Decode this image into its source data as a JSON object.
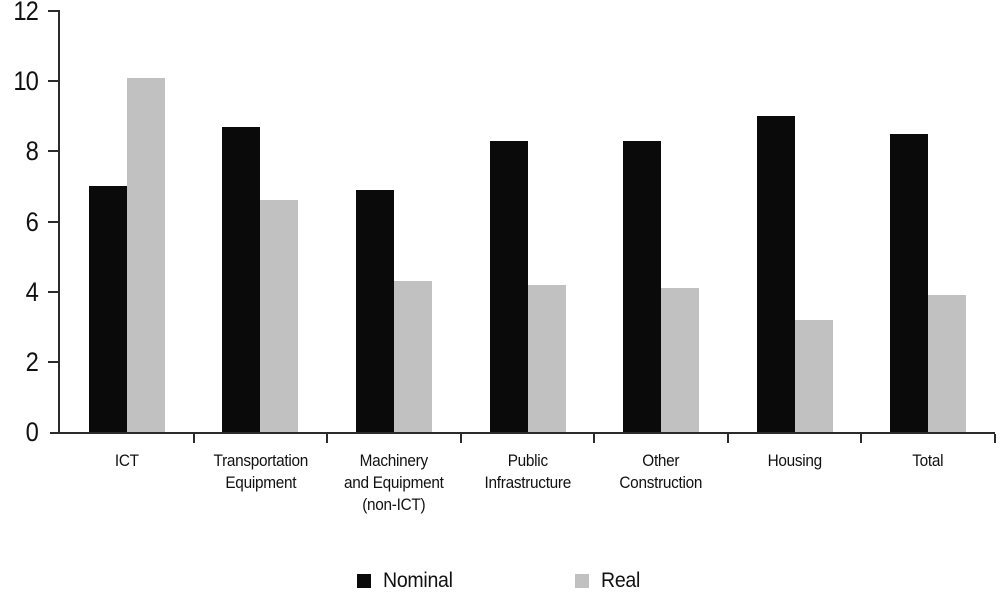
{
  "chart_data": {
    "type": "bar",
    "title": "",
    "xlabel": "",
    "ylabel": "",
    "categories": [
      "ICT",
      "Transportation\nEquipment",
      "Machinery\nand Equipment\n(non-ICT)",
      "Public\nInfrastructure",
      "Other\nConstruction",
      "Housing",
      "Total"
    ],
    "series": [
      {
        "name": "Nominal",
        "color": "#0a0a0a",
        "values": [
          7.0,
          8.7,
          6.9,
          8.3,
          8.3,
          9.0,
          8.5
        ]
      },
      {
        "name": "Real",
        "color": "#c1c1c1",
        "values": [
          10.1,
          6.6,
          4.3,
          4.2,
          4.1,
          3.2,
          3.9
        ]
      }
    ],
    "ylim": [
      0,
      12
    ],
    "yticks": [
      0,
      2,
      4,
      6,
      8,
      10,
      12
    ],
    "grid": false,
    "legend_position": "bottom",
    "axis_color": "#2b2b2b"
  }
}
